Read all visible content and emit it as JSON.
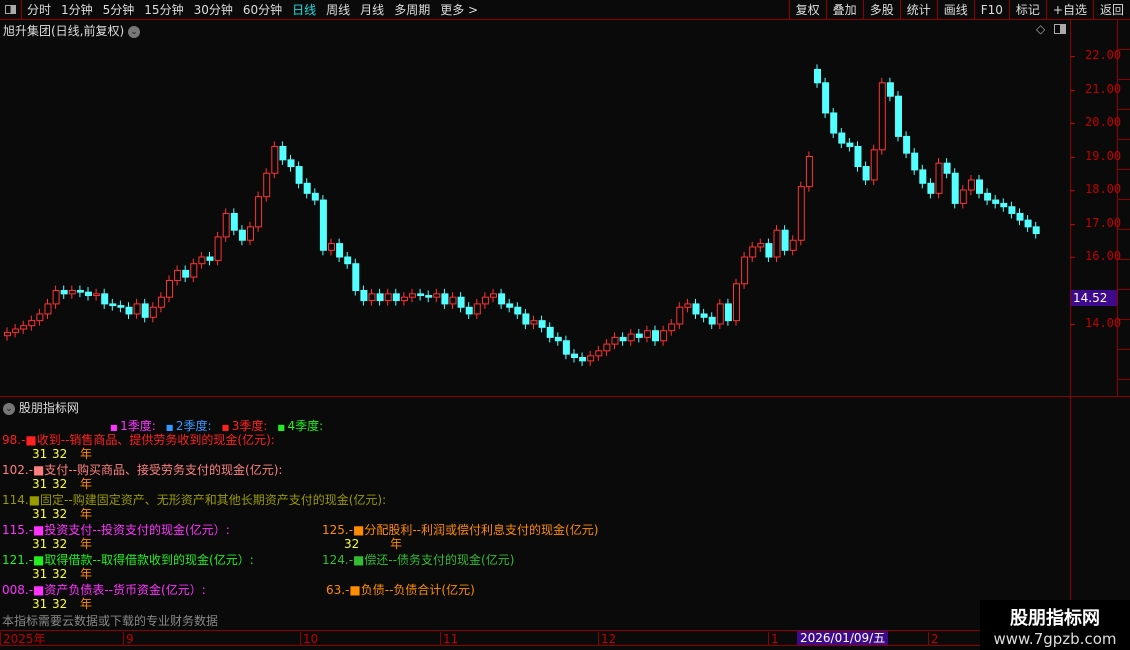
{
  "toolbar": {
    "periods": [
      "分时",
      "1分钟",
      "5分钟",
      "15分钟",
      "30分钟",
      "60分钟",
      "日线",
      "周线",
      "月线",
      "多周期",
      "更多 >"
    ],
    "active": "日线",
    "buttons": [
      "复权",
      "叠加",
      "多股",
      "统计",
      "画线",
      "F10",
      "标记",
      "+自选",
      "返回"
    ]
  },
  "chart": {
    "title": "旭升集团(日线,前复权)",
    "last_price": "14.52",
    "y_ticks": [
      "22.00",
      "21.00",
      "20.00",
      "19.00",
      "18.00",
      "17.00",
      "16.00",
      "14.00"
    ]
  },
  "chart_data": {
    "type": "candlestick",
    "ylim": [
      12.7,
      22.8
    ],
    "up_color": "#ff3232",
    "down_color": "#54ffff",
    "open": [
      13.65,
      13.75,
      13.85,
      13.95,
      14.1,
      14.3,
      14.6,
      15.0,
      14.9,
      15.0,
      14.95,
      14.85,
      14.9,
      14.6,
      14.55,
      14.5,
      14.3,
      14.6,
      14.2,
      14.5,
      14.8,
      15.3,
      15.6,
      15.4,
      15.8,
      16.0,
      15.9,
      16.6,
      17.3,
      16.8,
      16.5,
      16.9,
      17.8,
      18.5,
      19.3,
      18.9,
      18.7,
      18.2,
      17.9,
      17.7,
      16.2,
      16.4,
      16.0,
      15.8,
      15.0,
      14.7,
      14.9,
      14.7,
      14.9,
      14.7,
      14.8,
      14.9,
      14.85,
      14.8,
      14.9,
      14.6,
      14.8,
      14.5,
      14.3,
      14.6,
      14.8,
      14.9,
      14.6,
      14.5,
      14.3,
      14.0,
      14.1,
      13.9,
      13.6,
      13.5,
      13.1,
      13.0,
      12.9,
      13.05,
      13.2,
      13.4,
      13.6,
      13.5,
      13.7,
      13.6,
      13.8,
      13.5,
      13.8,
      14.0,
      14.5,
      14.6,
      14.3,
      14.2,
      14.0,
      14.6,
      14.1,
      15.2,
      16.0,
      16.3,
      16.4,
      16.0,
      16.8,
      16.2,
      16.5,
      18.1,
      21.6,
      21.2,
      20.3,
      19.7,
      19.4,
      19.3,
      18.7,
      18.3,
      19.2,
      21.2,
      20.8,
      19.6,
      19.1,
      18.6,
      18.2,
      17.9,
      18.8,
      18.5,
      17.6,
      18.0,
      18.3,
      17.9,
      17.7,
      17.6,
      17.5,
      17.3,
      17.1,
      16.9
    ],
    "close": [
      13.75,
      13.85,
      13.95,
      14.1,
      14.3,
      14.6,
      15.0,
      14.9,
      15.0,
      14.95,
      14.85,
      14.9,
      14.6,
      14.55,
      14.5,
      14.3,
      14.6,
      14.2,
      14.5,
      14.8,
      15.3,
      15.6,
      15.4,
      15.8,
      16.0,
      15.9,
      16.6,
      17.3,
      16.8,
      16.5,
      16.9,
      17.8,
      18.5,
      19.3,
      18.9,
      18.7,
      18.2,
      17.9,
      17.7,
      16.2,
      16.4,
      16.0,
      15.8,
      15.0,
      14.7,
      14.9,
      14.7,
      14.9,
      14.7,
      14.8,
      14.9,
      14.85,
      14.8,
      14.9,
      14.6,
      14.8,
      14.5,
      14.3,
      14.6,
      14.8,
      14.9,
      14.6,
      14.5,
      14.3,
      14.0,
      14.1,
      13.9,
      13.6,
      13.5,
      13.1,
      13.0,
      12.9,
      13.05,
      13.2,
      13.4,
      13.6,
      13.5,
      13.7,
      13.6,
      13.8,
      13.5,
      13.8,
      14.0,
      14.5,
      14.6,
      14.3,
      14.2,
      14.0,
      14.6,
      14.1,
      15.2,
      16.0,
      16.3,
      16.4,
      16.0,
      16.8,
      16.2,
      16.5,
      18.1,
      19.0,
      21.2,
      20.3,
      19.7,
      19.4,
      19.3,
      18.7,
      18.3,
      19.2,
      21.2,
      20.8,
      19.6,
      19.1,
      18.6,
      18.2,
      17.9,
      18.8,
      18.5,
      17.6,
      18.0,
      18.3,
      17.9,
      17.7,
      17.6,
      17.5,
      17.3,
      17.1,
      16.9,
      16.7
    ]
  },
  "panel": {
    "title": "股朋指标网",
    "legend": [
      {
        "label": "1季度:",
        "color": "#ff33ff"
      },
      {
        "label": "2季度:",
        "color": "#3399ff"
      },
      {
        "label": "3季度:",
        "color": "#ff2020"
      },
      {
        "label": "4季度:",
        "color": "#22ee22"
      }
    ],
    "lines": [
      {
        "text": "98.-■收到--销售商品、提供劳务收到的现金(亿元):",
        "color": "#ff2020"
      },
      {
        "text": "102.-■支付--购买商品、接受劳务支付的现金(亿元):",
        "color": "#ff8080"
      },
      {
        "text": "114.■固定--购建固定资产、无形资产和其他长期资产支付的现金(亿元):",
        "color": "#999900"
      },
      {
        "text": "115.-■投资支付--投资支付的现金(亿元）:",
        "color": "#ff33ff"
      },
      {
        "text": "125.-■分配股利--利润或偿付利息支付的现金(亿元)",
        "color": "#ff8c00"
      },
      {
        "text": "121.-■取得借款--取得借款收到的现金(亿元）:",
        "color": "#22ee22"
      },
      {
        "text": "124.-■偿还--债务支付的现金(亿元)",
        "color": "#33bb33"
      },
      {
        "text": "008.-■资产负债表--货币资金(亿元）:",
        "color": "#ff33ff"
      },
      {
        "text": "63.-■负债--负债合计(亿元)",
        "color": "#ff8c00"
      }
    ],
    "v31": "31",
    "v32": "32",
    "year": "年",
    "note": "本指标需要云数据或下载的专业财务数据"
  },
  "time_axis": {
    "labels": [
      "2025年",
      "9",
      "10",
      "11",
      "12",
      "1",
      "2"
    ],
    "cursor_date": "2026/01/09/五"
  },
  "watermark": {
    "name": "股朋指标网",
    "url": "www.7gpzb.com"
  }
}
